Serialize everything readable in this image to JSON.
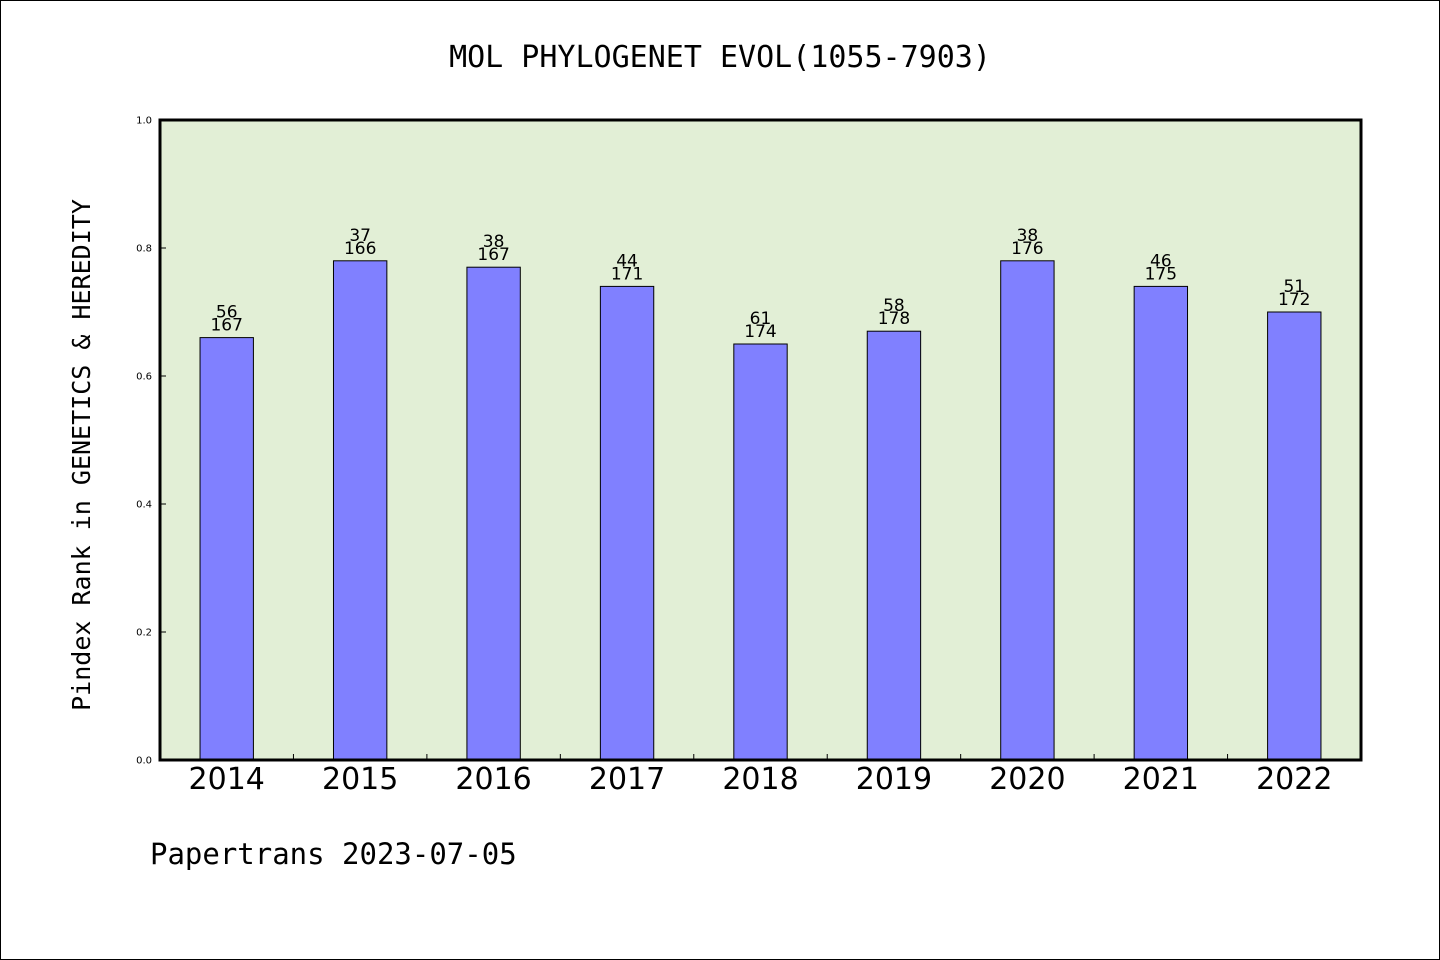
{
  "chart_data": {
    "type": "bar",
    "title": "MOL PHYLOGENET EVOL(1055-7903)",
    "ylabel": "Pindex Rank in GENETICS & HEREDITY",
    "xlabel": "",
    "ylim": [
      0,
      1.0
    ],
    "yticks": [
      "0.0",
      "0.2",
      "0.4",
      "0.6",
      "0.8",
      "1.0"
    ],
    "ytick_values": [
      0.0,
      0.2,
      0.4,
      0.6,
      0.8,
      1.0
    ],
    "categories": [
      "2014",
      "2015",
      "2016",
      "2017",
      "2018",
      "2019",
      "2020",
      "2021",
      "2022"
    ],
    "values": [
      0.66,
      0.78,
      0.77,
      0.74,
      0.65,
      0.67,
      0.78,
      0.74,
      0.7
    ],
    "rank_labels": [
      "56",
      "37",
      "38",
      "44",
      "61",
      "58",
      "38",
      "46",
      "51"
    ],
    "total_labels": [
      "167",
      "166",
      "167",
      "171",
      "174",
      "178",
      "176",
      "175",
      "172"
    ],
    "grid": false,
    "colors": {
      "plot_background": "#e2efd6",
      "bar_fill": "#8080ff",
      "bar_stroke": "#000000",
      "axis": "#000000"
    }
  },
  "footer": {
    "text": "Papertrans 2023-07-05"
  }
}
